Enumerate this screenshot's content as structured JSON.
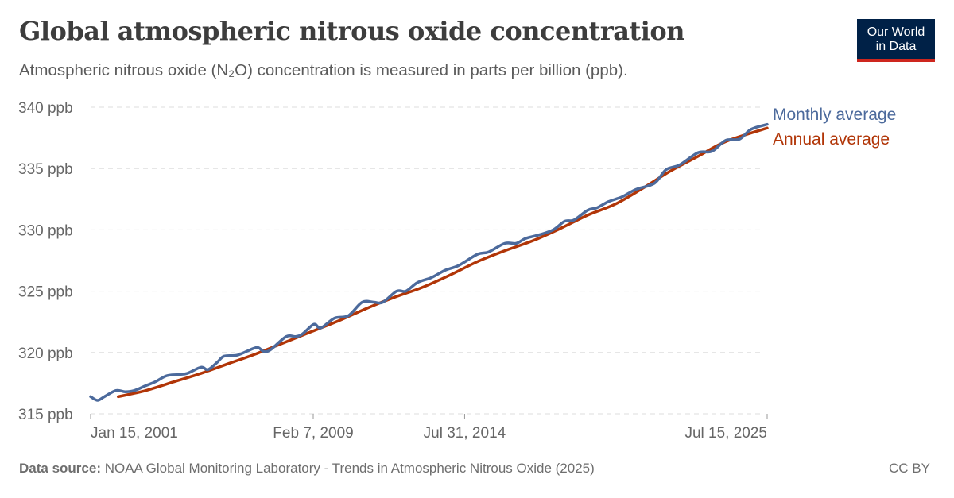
{
  "title": "Global atmospheric nitrous oxide concentration",
  "subtitle": "Atmospheric nitrous oxide (N₂O) concentration is measured in parts per billion (ppb).",
  "logo": {
    "line1": "Our World",
    "line2": "in Data",
    "bg_color": "#002147",
    "accent_color": "#ce261e"
  },
  "footer": {
    "source_label": "Data source:",
    "source_text": "NOAA Global Monitoring Laboratory - Trends in Atmospheric Nitrous Oxide (2025)",
    "license": "CC BY"
  },
  "chart_data": {
    "type": "line",
    "title": "Global atmospheric nitrous oxide concentration",
    "ylabel": "",
    "xlabel": "",
    "ylim": [
      315,
      340
    ],
    "xlim": [
      "2001-01-15",
      "2025-07-15"
    ],
    "yticks": [
      "315 ppb",
      "320 ppb",
      "325 ppb",
      "330 ppb",
      "335 ppb",
      "340 ppb"
    ],
    "ytick_values": [
      315,
      320,
      325,
      330,
      335,
      340
    ],
    "xticks": [
      {
        "label": "Jan 15, 2001",
        "date": "2001-01-15"
      },
      {
        "label": "Feb 7, 2009",
        "date": "2009-02-07"
      },
      {
        "label": "Jul 31, 2014",
        "date": "2014-07-31"
      },
      {
        "label": "Jul 15, 2025",
        "date": "2025-07-15"
      }
    ],
    "grid": "horizontal dashed",
    "legend": "right (inline labels at line ends)",
    "series": [
      {
        "name": "Monthly average",
        "color": "#4c6a9c",
        "points": [
          [
            "2001-01",
            316.4
          ],
          [
            "2001-04",
            316.1
          ],
          [
            "2001-07",
            316.4
          ],
          [
            "2001-12",
            316.9
          ],
          [
            "2002-04",
            316.8
          ],
          [
            "2002-08",
            316.9
          ],
          [
            "2003-01",
            317.3
          ],
          [
            "2003-05",
            317.6
          ],
          [
            "2003-10",
            318.1
          ],
          [
            "2004-03",
            318.2
          ],
          [
            "2004-07",
            318.3
          ],
          [
            "2005-01",
            318.8
          ],
          [
            "2005-04",
            318.6
          ],
          [
            "2005-08",
            319.2
          ],
          [
            "2005-11",
            319.7
          ],
          [
            "2006-05",
            319.8
          ],
          [
            "2007-01",
            320.4
          ],
          [
            "2007-04",
            320.1
          ],
          [
            "2007-07",
            320.2
          ],
          [
            "2008-02",
            321.3
          ],
          [
            "2008-06",
            321.3
          ],
          [
            "2008-09",
            321.5
          ],
          [
            "2009-02",
            322.3
          ],
          [
            "2009-05",
            322.0
          ],
          [
            "2009-11",
            322.8
          ],
          [
            "2010-05",
            323.0
          ],
          [
            "2010-11",
            324.1
          ],
          [
            "2011-04",
            324.1
          ],
          [
            "2011-08",
            324.1
          ],
          [
            "2012-02",
            325.0
          ],
          [
            "2012-06",
            325.0
          ],
          [
            "2012-11",
            325.7
          ],
          [
            "2013-05",
            326.1
          ],
          [
            "2013-11",
            326.7
          ],
          [
            "2014-05",
            327.1
          ],
          [
            "2015-01",
            328.0
          ],
          [
            "2015-06",
            328.2
          ],
          [
            "2016-01",
            328.9
          ],
          [
            "2016-06",
            328.9
          ],
          [
            "2016-10",
            329.3
          ],
          [
            "2017-04",
            329.6
          ],
          [
            "2017-10",
            330.0
          ],
          [
            "2018-03",
            330.7
          ],
          [
            "2018-07",
            330.8
          ],
          [
            "2019-01",
            331.6
          ],
          [
            "2019-05",
            331.8
          ],
          [
            "2019-10",
            332.3
          ],
          [
            "2020-04",
            332.7
          ],
          [
            "2020-10",
            333.3
          ],
          [
            "2021-06",
            333.8
          ],
          [
            "2021-11",
            334.9
          ],
          [
            "2022-05",
            335.3
          ],
          [
            "2023-01",
            336.3
          ],
          [
            "2023-07",
            336.4
          ],
          [
            "2024-01",
            337.3
          ],
          [
            "2024-07",
            337.4
          ],
          [
            "2024-12",
            338.2
          ],
          [
            "2025-07",
            338.6
          ]
        ]
      },
      {
        "name": "Annual average",
        "color": "#b13507",
        "points": [
          [
            "2002-01",
            316.4
          ],
          [
            "2003-01",
            316.9
          ],
          [
            "2004-01",
            317.6
          ],
          [
            "2005-01",
            318.3
          ],
          [
            "2006-01",
            319.1
          ],
          [
            "2007-01",
            319.9
          ],
          [
            "2008-01",
            320.8
          ],
          [
            "2009-01",
            321.7
          ],
          [
            "2010-01",
            322.6
          ],
          [
            "2011-01",
            323.6
          ],
          [
            "2012-01",
            324.5
          ],
          [
            "2013-01",
            325.3
          ],
          [
            "2014-01",
            326.3
          ],
          [
            "2015-01",
            327.4
          ],
          [
            "2016-01",
            328.3
          ],
          [
            "2017-01",
            329.1
          ],
          [
            "2018-01",
            330.1
          ],
          [
            "2019-01",
            331.2
          ],
          [
            "2020-01",
            332.1
          ],
          [
            "2021-01",
            333.4
          ],
          [
            "2022-01",
            334.8
          ],
          [
            "2023-01",
            336.0
          ],
          [
            "2024-01",
            337.2
          ],
          [
            "2025-07",
            338.3
          ]
        ]
      }
    ]
  }
}
